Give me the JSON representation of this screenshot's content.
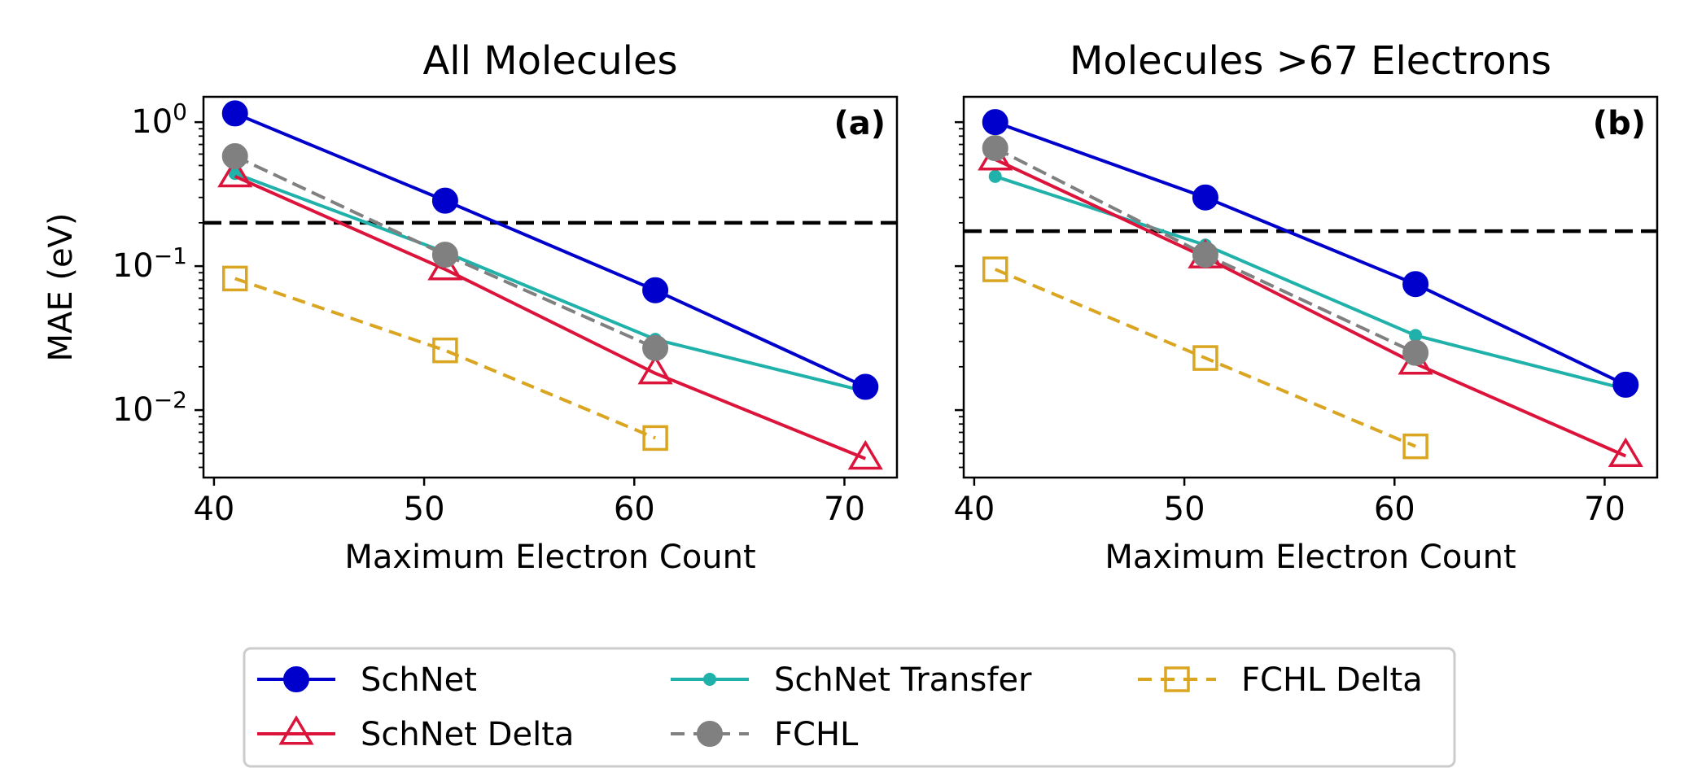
{
  "colors": {
    "SchNet": "#0000cc",
    "SchNet Transfer": "#20b2aa",
    "FCHL Delta": "#daa520",
    "SchNet Delta": "#dc143c",
    "FCHL": "#808080",
    "reference": "#000000"
  },
  "legend": {
    "placement": "bottom-center",
    "entries": [
      "SchNet",
      "SchNet Transfer",
      "FCHL Delta",
      "SchNet Delta",
      "FCHL"
    ]
  },
  "chart_data": [
    {
      "type": "line",
      "title": "All Molecules",
      "panel_label": "(a)",
      "xlabel": "Maximum Electron Count",
      "ylabel": "MAE (eV)",
      "yscale": "log",
      "xlim": [
        39.5,
        72.5
      ],
      "ylim": [
        0.0034,
        1.5
      ],
      "xticks": [
        40,
        50,
        60,
        70
      ],
      "yticks": [
        {
          "value": 1,
          "base": "10",
          "exp": "0"
        },
        {
          "value": 0.1,
          "base": "10",
          "exp": "−1"
        },
        {
          "value": 0.01,
          "base": "10",
          "exp": "−2"
        }
      ],
      "reference_line": 0.2,
      "series": [
        {
          "name": "SchNet",
          "x": [
            41,
            51,
            61,
            71
          ],
          "values": [
            1.15,
            0.285,
            0.068,
            0.0145
          ]
        },
        {
          "name": "SchNet Delta",
          "x": [
            41,
            51,
            61,
            71
          ],
          "values": [
            0.42,
            0.095,
            0.018,
            0.0046
          ]
        },
        {
          "name": "SchNet Transfer",
          "x": [
            41,
            51,
            61,
            71
          ],
          "values": [
            0.44,
            0.125,
            0.031,
            0.0135
          ]
        },
        {
          "name": "FCHL",
          "x": [
            41,
            51,
            61
          ],
          "values": [
            0.58,
            0.12,
            0.027
          ]
        },
        {
          "name": "FCHL Delta",
          "x": [
            41,
            51,
            61
          ],
          "values": [
            0.082,
            0.026,
            0.0064
          ]
        }
      ]
    },
    {
      "type": "line",
      "title": "Molecules >67 Electrons",
      "panel_label": "(b)",
      "xlabel": "Maximum Electron Count",
      "ylabel": "",
      "yscale": "log",
      "xlim": [
        39.5,
        72.5
      ],
      "ylim": [
        0.0034,
        1.5
      ],
      "xticks": [
        40,
        50,
        60,
        70
      ],
      "yticks": [],
      "reference_line": 0.175,
      "series": [
        {
          "name": "SchNet",
          "x": [
            41,
            51,
            61,
            71
          ],
          "values": [
            1.0,
            0.3,
            0.075,
            0.015
          ]
        },
        {
          "name": "SchNet Delta",
          "x": [
            41,
            51,
            61,
            71
          ],
          "values": [
            0.55,
            0.115,
            0.021,
            0.0048
          ]
        },
        {
          "name": "SchNet Transfer",
          "x": [
            41,
            51,
            61,
            71
          ],
          "values": [
            0.42,
            0.14,
            0.033,
            0.014
          ]
        },
        {
          "name": "FCHL",
          "x": [
            41,
            51,
            61
          ],
          "values": [
            0.66,
            0.12,
            0.025
          ]
        },
        {
          "name": "FCHL Delta",
          "x": [
            41,
            51,
            61
          ],
          "values": [
            0.095,
            0.023,
            0.0056
          ]
        }
      ]
    }
  ]
}
